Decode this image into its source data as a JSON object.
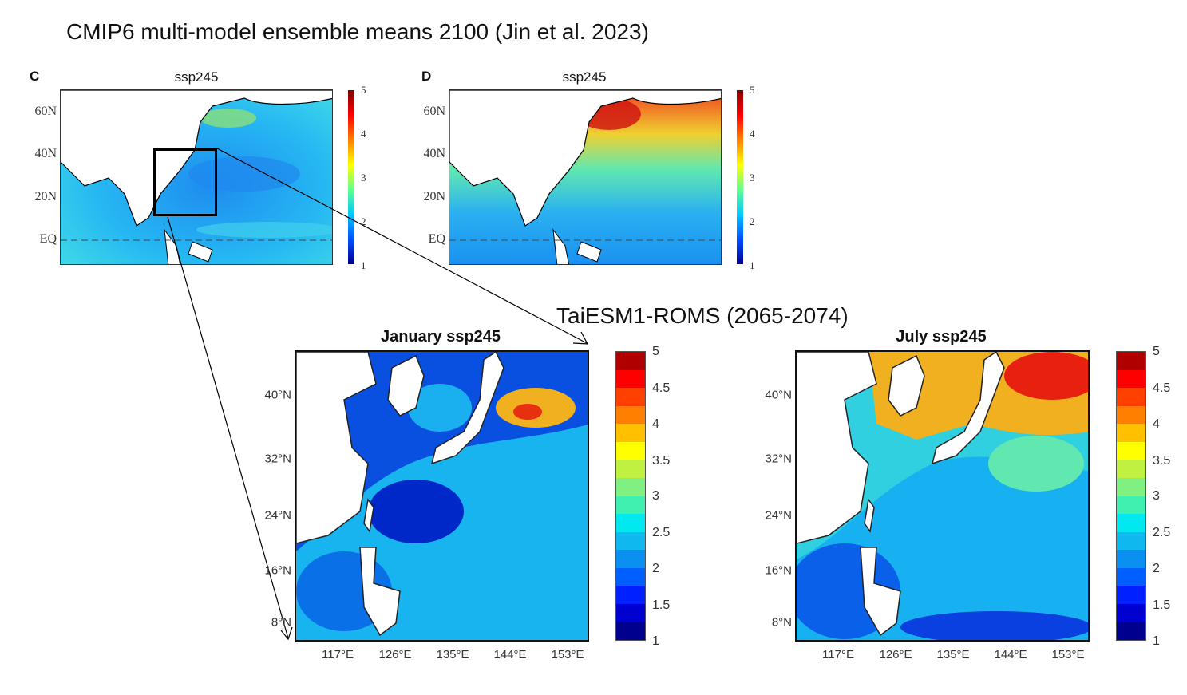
{
  "header": {
    "title": "CMIP6 multi-model ensemble means 2100 (Jin et al. 2023)"
  },
  "top_panels": [
    {
      "label": "C",
      "title": "ssp245"
    },
    {
      "label": "D",
      "title": "ssp245"
    }
  ],
  "top_lat_ticks": [
    "60N",
    "40N",
    "20N",
    "EQ"
  ],
  "top_colorbar_ticks": [
    "5",
    "4",
    "3",
    "2",
    "1"
  ],
  "section_title": "TaiESM1-ROMS (2065-2074)",
  "bottom_panels": [
    {
      "title": "January ssp245"
    },
    {
      "title": "July ssp245"
    }
  ],
  "bottom_lat_ticks": [
    "40°N",
    "32°N",
    "24°N",
    "16°N",
    "8°N"
  ],
  "bottom_lon_ticks": [
    "117°E",
    "126°E",
    "135°E",
    "144°E",
    "153°E"
  ],
  "bottom_colorbar_ticks": [
    "5",
    "4.5",
    "4",
    "3.5",
    "3",
    "2.5",
    "2",
    "1.5",
    "1"
  ],
  "colors": {
    "ocean_low": "#0a3cd8",
    "ocean_mid": "#1ab4f0",
    "ocean_warm": "#f0a020",
    "land": "#ffffff"
  }
}
